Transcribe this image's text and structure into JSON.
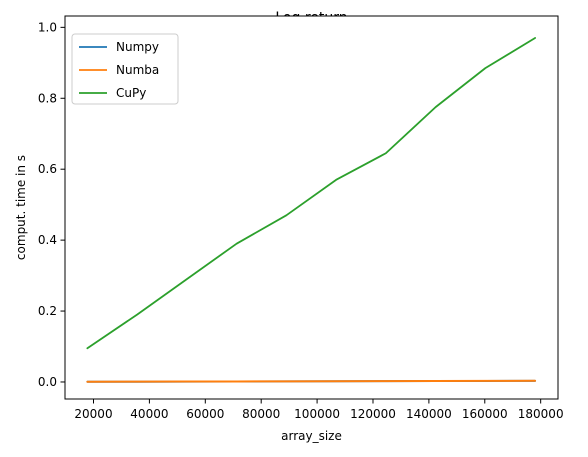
{
  "chart_data": {
    "type": "line",
    "title": "Log return",
    "xlabel": "array_size",
    "ylabel": "comput. time in s",
    "xlim": [
      9800,
      186200
    ],
    "ylim": [
      -0.048,
      1.032
    ],
    "xticks": [
      20000,
      40000,
      60000,
      80000,
      100000,
      120000,
      140000,
      160000,
      180000
    ],
    "yticks": [
      0.0,
      0.2,
      0.4,
      0.6,
      0.8,
      1.0
    ],
    "xtick_labels": [
      "20000",
      "40000",
      "60000",
      "80000",
      "100000",
      "120000",
      "140000",
      "160000",
      "180000"
    ],
    "ytick_labels": [
      "0.0",
      "0.2",
      "0.4",
      "0.6",
      "0.8",
      "1.0"
    ],
    "grid": false,
    "legend_position": "top-left",
    "x": [
      17800,
      35600,
      53400,
      71200,
      89000,
      106800,
      124600,
      142400,
      160200,
      178000
    ],
    "series": [
      {
        "name": "Numpy",
        "color": "#1f77b4",
        "values": [
          0.0005,
          0.0008,
          0.0011,
          0.0014,
          0.0017,
          0.002,
          0.0023,
          0.0026,
          0.0029,
          0.0032
        ]
      },
      {
        "name": "Numba",
        "color": "#ff7f0e",
        "values": [
          0.0006,
          0.0009,
          0.0012,
          0.0015,
          0.0018,
          0.0021,
          0.0024,
          0.0027,
          0.003,
          0.0033
        ]
      },
      {
        "name": "CuPy",
        "color": "#2ca02c",
        "values": [
          0.095,
          0.19,
          0.29,
          0.39,
          0.47,
          0.57,
          0.645,
          0.775,
          0.885,
          0.97
        ]
      }
    ]
  }
}
